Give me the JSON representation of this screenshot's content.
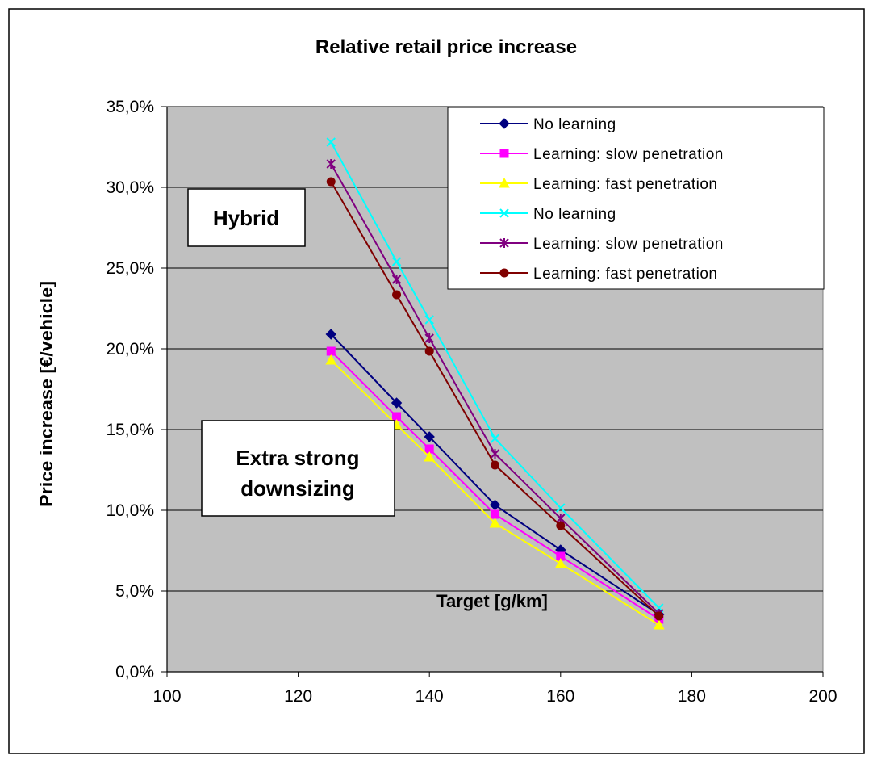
{
  "chart_data": {
    "type": "line",
    "title": "Relative retail price increase",
    "xlabel": "Target [g/km]",
    "ylabel": "Price increase [€/vehicle]",
    "xlim": [
      100,
      200
    ],
    "ylim": [
      0,
      0.35
    ],
    "x_ticks": [
      "100",
      "120",
      "140",
      "160",
      "180",
      "200"
    ],
    "y_ticks": [
      "0,0%",
      "5,0%",
      "10,0%",
      "15,0%",
      "20,0%",
      "25,0%",
      "30,0%",
      "35,0%"
    ],
    "grid": "horizontal",
    "legend_position": "top-right",
    "annotations": [
      {
        "text_lines": [
          "Hybrid"
        ]
      },
      {
        "text_lines": [
          "Extra strong",
          "downsizing"
        ]
      }
    ],
    "series": [
      {
        "name": "No learning",
        "color": "#000080",
        "marker": "diamond",
        "x": [
          125,
          135,
          140,
          150,
          160,
          175
        ],
        "y": [
          0.209,
          0.1665,
          0.1455,
          0.1033,
          0.0755,
          0.0355
        ]
      },
      {
        "name": "Learning: slow penetration",
        "color": "#ff00ff",
        "marker": "square",
        "x": [
          125,
          135,
          140,
          150,
          160,
          175
        ],
        "y": [
          0.1985,
          0.158,
          0.138,
          0.0975,
          0.0715,
          0.0325
        ]
      },
      {
        "name": "Learning: fast penetration",
        "color": "#ffff00",
        "marker": "triangle",
        "x": [
          125,
          135,
          140,
          150,
          160,
          175
        ],
        "y": [
          0.193,
          0.153,
          0.133,
          0.092,
          0.067,
          0.029
        ]
      },
      {
        "name": "No learning",
        "color": "#00ffff",
        "marker": "x",
        "x": [
          125,
          135,
          140,
          150,
          160,
          175
        ],
        "y": [
          0.328,
          0.254,
          0.218,
          0.1445,
          0.1015,
          0.0395
        ]
      },
      {
        "name": "Learning: slow penetration",
        "color": "#800080",
        "marker": "star",
        "x": [
          125,
          135,
          140,
          150,
          160,
          175
        ],
        "y": [
          0.3145,
          0.243,
          0.2065,
          0.135,
          0.095,
          0.036
        ]
      },
      {
        "name": "Learning: fast penetration",
        "color": "#800000",
        "marker": "circle",
        "x": [
          125,
          135,
          140,
          150,
          160,
          175
        ],
        "y": [
          0.3035,
          0.2335,
          0.1985,
          0.128,
          0.0905,
          0.0345
        ]
      }
    ]
  }
}
